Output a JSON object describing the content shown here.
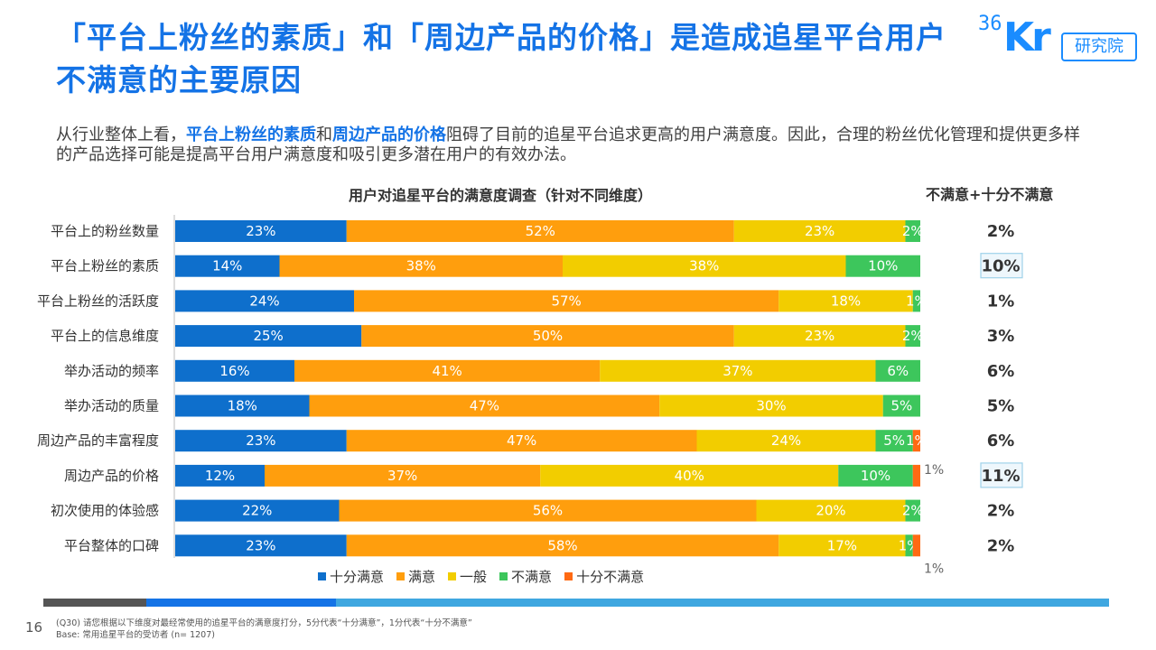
{
  "title": "「平台上粉丝的素质」和「周边产品的价格」是造成追星平台用户不满意的主要原因",
  "logo": {
    "num": "36",
    "kr": "Kr",
    "inst": "研究院"
  },
  "subtitle": {
    "p1": "从行业整体上看，",
    "hl1": "平台上粉丝的素质",
    "p2": "和",
    "hl2": "周边产品的价格",
    "p3": "阻碍了目前的追星平台追求更高的用户满意度。因此，合理的粉丝优化管理和提供更多样的产品选择可能是提高平台用户满意度和吸引更多潜在用户的有效办法。"
  },
  "chart_title": "用户对追星平台的满意度调查（针对不同维度）",
  "right_title": "不满意+十分不满意",
  "chart_data": {
    "type": "bar",
    "orientation": "horizontal",
    "stacked": true,
    "title": "用户对追星平台的满意度调查（针对不同维度）",
    "categories": [
      "平台上的粉丝数量",
      "平台上粉丝的素质",
      "平台上粉丝的活跃度",
      "平台上的信息维度",
      "举办活动的频率",
      "举办活动的质量",
      "周边产品的丰富程度",
      "周边产品的价格",
      "初次使用的体验感",
      "平台整体的口碑"
    ],
    "series": [
      {
        "name": "十分满意",
        "color": "#0e6fcc",
        "values": [
          23,
          14,
          24,
          25,
          16,
          18,
          23,
          12,
          22,
          23
        ]
      },
      {
        "name": "满意",
        "color": "#ff9e0d",
        "values": [
          52,
          38,
          57,
          50,
          41,
          47,
          47,
          37,
          56,
          58
        ]
      },
      {
        "name": "一般",
        "color": "#f2cd00",
        "values": [
          23,
          38,
          18,
          23,
          37,
          30,
          24,
          40,
          20,
          17
        ]
      },
      {
        "name": "不满意",
        "color": "#3dc65c",
        "values": [
          2,
          10,
          1,
          2,
          6,
          5,
          5,
          10,
          2,
          1
        ]
      },
      {
        "name": "十分不满意",
        "color": "#ff6a13",
        "values": [
          0,
          0,
          0,
          0,
          0,
          0,
          1,
          1,
          0,
          1
        ]
      }
    ],
    "labels_outside": {
      "7": "1%",
      "9": "1%"
    },
    "dissatisfied_total": [
      "2%",
      "10%",
      "1%",
      "3%",
      "6%",
      "5%",
      "6%",
      "11%",
      "2%",
      "2%"
    ],
    "highlighted": [
      1,
      7
    ],
    "legend_position": "bottom"
  },
  "colors": {
    "title": "#1473e6",
    "band_dark": "#555555",
    "band_mid": "#1473e6",
    "band_light": "#3fa7e0",
    "highlight_border": "#9fd2ea",
    "highlight_fill": "#eef7fc"
  },
  "page_number": "16",
  "footnote": {
    "line1": "(Q30) 请您根据以下维度对最经常使用的追星平台的满意度打分，5分代表“十分满意”，1分代表“十分不满意”",
    "line2": "Base: 常用追星平台的受访者 (n= 1207)"
  }
}
